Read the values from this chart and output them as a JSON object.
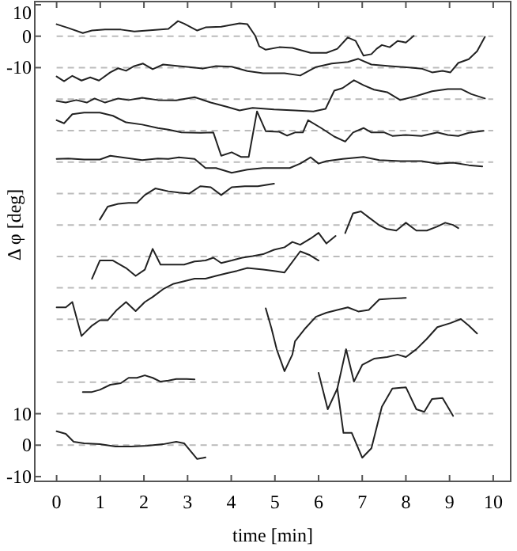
{
  "chart_data": {
    "type": "line",
    "xlabel": "time [min]",
    "y2label": "Δ φ [deg]",
    "xlim": [
      -0.5,
      10.4
    ],
    "ylim": [
      -11.5,
      141
    ],
    "xticks": [
      0,
      1,
      2,
      3,
      4,
      5,
      6,
      7,
      8,
      9,
      10
    ],
    "yticks": [
      -10,
      0,
      10
    ],
    "y2lim": [
      -141.5,
      11
    ],
    "y2ticks": [
      -10,
      0,
      10
    ],
    "grid": false,
    "marker": "none",
    "line_style": "solid",
    "ref_lines": [
      {
        "axis": "y",
        "value": 0,
        "color": "#bbbbbb",
        "line_style": "dashed"
      },
      {
        "axis": "y",
        "value": 10,
        "color": "#bbbbbb",
        "line_style": "dashed"
      },
      {
        "axis": "y",
        "value": 20,
        "color": "#bbbbbb",
        "line_style": "dashed"
      },
      {
        "axis": "y",
        "value": 30,
        "color": "#bbbbbb",
        "line_style": "dashed"
      },
      {
        "axis": "y",
        "value": 40,
        "color": "#bbbbbb",
        "line_style": "dashed"
      },
      {
        "axis": "y",
        "value": 50,
        "color": "#bbbbbb",
        "line_style": "dashed"
      },
      {
        "axis": "y",
        "value": 60,
        "color": "#bbbbbb",
        "line_style": "dashed"
      },
      {
        "axis": "y",
        "value": 70,
        "color": "#bbbbbb",
        "line_style": "dashed"
      },
      {
        "axis": "y",
        "value": 80,
        "color": "#bbbbbb",
        "line_style": "dashed"
      },
      {
        "axis": "y",
        "value": 90,
        "color": "#bbbbbb",
        "line_style": "dashed"
      },
      {
        "axis": "y",
        "value": 100,
        "color": "#bbbbbb",
        "line_style": "dashed"
      },
      {
        "axis": "y",
        "value": 110,
        "color": "#bbbbbb",
        "line_style": "dashed"
      },
      {
        "axis": "y",
        "value": 120,
        "color": "#bbbbbb",
        "line_style": "dashed"
      },
      {
        "axis": "y",
        "value": 130,
        "color": "#bbbbbb",
        "line_style": "dashed"
      }
    ],
    "series": [
      {
        "color": "#222222",
        "axis": "y2",
        "x": [
          0,
          0.27,
          0.6,
          0.81,
          1.11,
          1.47,
          1.78,
          2.08,
          2.56,
          2.78,
          2.92,
          3.22,
          3.41,
          3.77,
          4.19,
          4.37,
          4.55,
          4.64,
          4.79,
          5.1,
          5.4,
          5.82,
          6.18,
          6.43,
          6.67,
          6.85,
          7.03,
          7.21,
          7.33,
          7.45,
          7.63,
          7.81,
          8.0,
          8.18
        ],
        "values": [
          3.8,
          2.6,
          1,
          1.8,
          2.1,
          2.1,
          1.5,
          1.8,
          2.3,
          4.8,
          4,
          1.8,
          2.8,
          3,
          4.1,
          3.8,
          0.1,
          -3.2,
          -4.3,
          -3.5,
          -3.7,
          -5.3,
          -5.3,
          -4,
          -0.4,
          -1.5,
          -6.2,
          -5.7,
          -4,
          -2.8,
          -3.5,
          -1.5,
          -2,
          0.1
        ]
      },
      {
        "color": "#222222",
        "x": [
          0,
          0.17,
          0.36,
          0.57,
          0.77,
          0.97,
          1.23,
          1.41,
          1.59,
          1.78,
          1.98,
          2.2,
          2.44,
          2.8,
          3.04,
          3.35,
          3.65,
          4.01,
          4.37,
          4.73,
          5.22,
          5.58,
          5.94,
          6.3,
          6.67,
          6.91,
          7.21,
          7.63,
          8.12,
          8.36,
          8.6,
          8.84,
          9.02,
          9.2,
          9.44,
          9.63,
          9.81
        ],
        "values": [
          117.2,
          115.7,
          117.4,
          115.9,
          116.9,
          115.9,
          118.5,
          119.8,
          119,
          120.5,
          121.3,
          119.5,
          121,
          120.5,
          120.2,
          119.7,
          120.5,
          120.3,
          118.9,
          118.2,
          118.2,
          117.5,
          120.2,
          121.3,
          121.8,
          122.8,
          121,
          120.5,
          120,
          119.7,
          118.5,
          119,
          118.5,
          121.5,
          122.7,
          125.2,
          129.8
        ]
      },
      {
        "color": "#222222",
        "x": [
          0,
          0.21,
          0.45,
          0.69,
          0.87,
          1.11,
          1.41,
          1.65,
          1.96,
          2.32,
          2.74,
          3.16,
          3.53,
          3.89,
          4.19,
          4.49,
          4.98,
          5.46,
          5.88,
          6.16,
          6.36,
          6.55,
          6.81,
          7.03,
          7.27,
          7.57,
          7.87,
          8.24,
          8.6,
          8.96,
          9.26,
          9.5,
          9.81
        ],
        "values": [
          109.4,
          108.9,
          109.7,
          108.9,
          110.2,
          108.9,
          110.2,
          109.7,
          110.4,
          109.7,
          109.6,
          110.6,
          108.9,
          107.6,
          106.4,
          107.2,
          106.7,
          106.4,
          106.1,
          106.9,
          112.7,
          113.5,
          116,
          114.4,
          113,
          112.2,
          109.7,
          111,
          112.5,
          113.2,
          113.2,
          111.6,
          110.2
        ]
      },
      {
        "color": "#222222",
        "x": [
          0,
          0.17,
          0.36,
          0.63,
          0.99,
          1.29,
          1.59,
          1.96,
          2.32,
          2.56,
          2.86,
          3.29,
          3.59,
          3.77,
          4.01,
          4.23,
          4.4,
          4.59,
          4.79,
          5.1,
          5.28,
          5.46,
          5.64,
          5.76,
          6.06,
          6.36,
          6.61,
          6.79,
          7.03,
          7.21,
          7.51,
          7.69,
          8,
          8.36,
          8.72,
          8.96,
          9.2,
          9.44,
          9.78
        ],
        "values": [
          103.3,
          102.3,
          105.2,
          105.7,
          105.7,
          104.7,
          102.6,
          101.9,
          100.8,
          100.3,
          99.4,
          99.3,
          99.4,
          92,
          93.1,
          91.6,
          91.6,
          106.1,
          99.8,
          99.6,
          98.4,
          99.4,
          99.4,
          103.3,
          100.8,
          98.1,
          96.5,
          99.4,
          100.8,
          99.4,
          99.4,
          98.3,
          98.6,
          98.3,
          99.4,
          98.6,
          98.3,
          99.3,
          99.9
        ]
      },
      {
        "color": "#222222",
        "x": [
          0,
          0.27,
          0.63,
          0.99,
          1.23,
          1.59,
          1.96,
          2.32,
          2.56,
          2.8,
          3.16,
          3.41,
          3.65,
          4.01,
          4.37,
          4.73,
          5.34,
          5.58,
          5.82,
          6,
          6.18,
          6.55,
          7.03,
          7.39,
          7.87,
          8.36,
          8.72,
          9.08,
          9.44,
          9.75
        ],
        "values": [
          91,
          91.1,
          90.8,
          90.8,
          92,
          91.3,
          90.6,
          91.1,
          91,
          91.5,
          91,
          88.1,
          88.1,
          86.6,
          87.6,
          88.1,
          88.1,
          89.5,
          91.5,
          89.5,
          90.3,
          91,
          91.6,
          90.6,
          90.3,
          90.3,
          89.5,
          89.8,
          89,
          88.6
        ]
      },
      {
        "color": "#222222",
        "x": [
          0.99,
          1.17,
          1.41,
          1.65,
          1.84,
          2.02,
          2.26,
          2.56,
          2.8,
          3.04,
          3.29,
          3.53,
          3.77,
          4.01,
          4.31,
          4.61,
          4.98
        ],
        "values": [
          71.7,
          75.8,
          76.7,
          77,
          77,
          79.5,
          81.6,
          80.7,
          80.3,
          80,
          82.3,
          82,
          79.5,
          82,
          82.3,
          82.3,
          83.1
        ]
      },
      {
        "color": "#222222",
        "x": [
          6.61,
          6.79,
          6.97,
          7.15,
          7.39,
          7.57,
          7.78,
          8,
          8.24,
          8.48,
          8.72,
          8.9,
          9.08,
          9.2
        ],
        "values": [
          67.4,
          73.7,
          74.3,
          72.4,
          69.9,
          68.7,
          68.2,
          70.7,
          68.2,
          68.2,
          69.5,
          70.7,
          70,
          69
        ]
      },
      {
        "color": "#222222",
        "x": [
          0.81,
          0.99,
          1.29,
          1.59,
          1.81,
          2.02,
          2.2,
          2.38,
          2.62,
          2.92,
          3.16,
          3.41,
          3.59,
          3.77,
          4.01,
          4.25,
          4.49,
          4.73,
          4.98,
          5.22,
          5.4,
          5.58,
          5.82,
          6,
          6.18,
          6.39
        ],
        "values": [
          52.9,
          58.7,
          58.7,
          56.3,
          53.8,
          55.8,
          62.4,
          57.4,
          57.4,
          57.4,
          58.4,
          58.7,
          59.6,
          57.9,
          58.7,
          59.6,
          60.1,
          60.7,
          62.1,
          62.9,
          64.6,
          63.7,
          65.7,
          67.5,
          64.1,
          66.5
        ]
      },
      {
        "color": "#222222",
        "x": [
          0,
          0.21,
          0.36,
          0.57,
          0.81,
          0.99,
          1.17,
          1.38,
          1.59,
          1.81,
          2.02,
          2.2,
          2.44,
          2.68,
          2.92,
          3.16,
          3.41,
          3.65,
          3.89,
          4.13,
          4.37,
          4.73,
          4.98,
          5.22,
          5.58,
          5.8,
          6
        ],
        "values": [
          43.8,
          43.8,
          45.5,
          34.7,
          38,
          39.7,
          39.7,
          43,
          45.5,
          42.6,
          45.5,
          47.1,
          49.6,
          51.3,
          52.1,
          52.9,
          52.9,
          53.8,
          54.6,
          55.4,
          56.3,
          55.8,
          55.4,
          54.9,
          61.6,
          60.4,
          58.7
        ]
      },
      {
        "color": "#222222",
        "x": [
          4.79,
          4.92,
          5.04,
          5.22,
          5.4,
          5.46,
          5.7,
          5.94,
          6.18,
          6.43,
          6.67,
          6.91,
          7.15,
          7.39,
          7.69,
          8
        ],
        "values": [
          43.5,
          37.2,
          30.5,
          23.5,
          28.8,
          33,
          37.2,
          40.8,
          42.1,
          43,
          43.8,
          42.5,
          43,
          46.3,
          46.6,
          46.8
        ]
      },
      {
        "color": "#222222",
        "x": [
          0.6,
          0.81,
          0.99,
          1.23,
          1.47,
          1.65,
          1.84,
          2.02,
          2.2,
          2.38,
          2.56,
          2.74,
          2.98,
          3.16
        ],
        "values": [
          16.9,
          16.9,
          17.6,
          19.2,
          19.7,
          21.4,
          21.4,
          22.2,
          21.4,
          20.2,
          20.5,
          21,
          21,
          20.9
        ]
      },
      {
        "color": "#222222",
        "x": [
          6,
          6.21,
          6.43,
          6.63,
          6.81,
          7,
          7.27,
          7.57,
          7.81,
          8,
          8.24,
          8.48,
          8.72,
          9.02,
          9.26,
          9.44,
          9.63
        ],
        "values": [
          23,
          11.4,
          18,
          30.5,
          20.2,
          25.5,
          27.5,
          28,
          28.8,
          28,
          30.5,
          33.8,
          37.5,
          38.8,
          40.1,
          38,
          35.5
        ]
      },
      {
        "color": "#222222",
        "x": [
          6.43,
          6.57,
          6.76,
          7,
          7.21,
          7.45,
          7.69,
          8,
          8.24,
          8.42,
          8.6,
          8.84,
          9.08
        ],
        "values": [
          18,
          3.9,
          3.9,
          -4,
          -1,
          12.2,
          18,
          18.4,
          11.4,
          10.6,
          14.7,
          15,
          9.3
        ]
      },
      {
        "color": "#222222",
        "x": [
          0,
          0.21,
          0.39,
          0.63,
          0.99,
          1.35,
          1.71,
          2.08,
          2.44,
          2.74,
          2.92,
          3.22,
          3.41
        ],
        "values": [
          4.4,
          3.6,
          1.1,
          0.6,
          0.3,
          -0.4,
          -0.4,
          -0.2,
          0.3,
          1.1,
          0.6,
          -4.4,
          -3.9
        ]
      }
    ]
  }
}
